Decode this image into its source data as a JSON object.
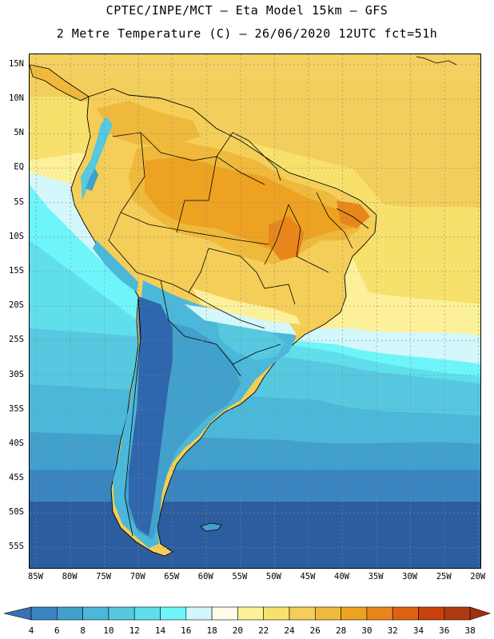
{
  "header": {
    "line1": "CPTEC/INPE/MCT –  Eta Model 15km – GFS",
    "line2": "2 Metre Temperature (C) – 26/06/2020 12UTC fct=51h"
  },
  "map": {
    "lat_labels": [
      {
        "lat": 15,
        "label": "15N"
      },
      {
        "lat": 10,
        "label": "10N"
      },
      {
        "lat": 5,
        "label": "5N"
      },
      {
        "lat": 0,
        "label": "EQ"
      },
      {
        "lat": -5,
        "label": "5S"
      },
      {
        "lat": -10,
        "label": "10S"
      },
      {
        "lat": -15,
        "label": "15S"
      },
      {
        "lat": -20,
        "label": "20S"
      },
      {
        "lat": -25,
        "label": "25S"
      },
      {
        "lat": -30,
        "label": "30S"
      },
      {
        "lat": -35,
        "label": "35S"
      },
      {
        "lat": -40,
        "label": "40S"
      },
      {
        "lat": -45,
        "label": "45S"
      },
      {
        "lat": -50,
        "label": "50S"
      },
      {
        "lat": -55,
        "label": "55S"
      }
    ],
    "lon_labels": [
      {
        "lon": -85,
        "label": "85W"
      },
      {
        "lon": -80,
        "label": "80W"
      },
      {
        "lon": -75,
        "label": "75W"
      },
      {
        "lon": -70,
        "label": "70W"
      },
      {
        "lon": -65,
        "label": "65W"
      },
      {
        "lon": -60,
        "label": "60W"
      },
      {
        "lon": -55,
        "label": "55W"
      },
      {
        "lon": -50,
        "label": "50W"
      },
      {
        "lon": -45,
        "label": "45W"
      },
      {
        "lon": -40,
        "label": "40W"
      },
      {
        "lon": -35,
        "label": "35W"
      },
      {
        "lon": -30,
        "label": "30W"
      },
      {
        "lon": -25,
        "label": "25W"
      },
      {
        "lon": -20,
        "label": "20W"
      }
    ],
    "extent": {
      "lon_min": -86,
      "lon_max": -19.5,
      "lat_max": 16.5,
      "lat_min": -58.2
    }
  },
  "colorbar": {
    "levels": [
      "4",
      "6",
      "8",
      "10",
      "12",
      "14",
      "16",
      "18",
      "20",
      "22",
      "24",
      "26",
      "28",
      "30",
      "32",
      "34",
      "36",
      "38"
    ],
    "colors": [
      "#3b6fb3",
      "#3a85bf",
      "#41a0cc",
      "#4cb8d9",
      "#56c8e0",
      "#5fdeec",
      "#6ef5fa",
      "#d3f7fb",
      "#fffbea",
      "#fcf19a",
      "#f7e16c",
      "#f4ce58",
      "#efb93c",
      "#eea221",
      "#e8861c",
      "#df6213",
      "#c9420a",
      "#ad3a10",
      "#a03010"
    ]
  },
  "palette": {
    "ocean_south": "#2c5d9e",
    "ocean_mid": "#4cb8d9",
    "ocean_north": "#f2cf5c",
    "land_hot": "#eea221",
    "land_warm": "#f4ce58",
    "andes": "#2f66ad"
  }
}
